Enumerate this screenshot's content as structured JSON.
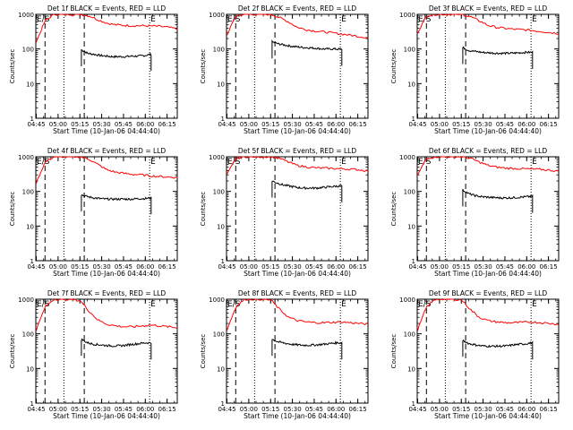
{
  "chart_data": [
    {
      "type": "line",
      "title": "Det 1f BLACK = Events, RED = LLD",
      "xlabel": "Start Time (10-Jan-06 04:44:40)",
      "ylabel": "Counts/sec",
      "yscale": "log",
      "ylim": [
        1,
        1000
      ],
      "xticks": [
        "04:45",
        "05:00",
        "05:15",
        "05:30",
        "05:45",
        "06:00",
        "06:15"
      ],
      "yticks": [
        "1",
        "10",
        "100",
        "1000"
      ],
      "markers": {
        "es_label": "E/S",
        "e_label": "E"
      },
      "series": [
        {
          "name": "Events",
          "color": "#000000",
          "start": "05:16",
          "end": "06:04",
          "values": [
            95,
            75,
            70,
            65,
            62,
            60,
            60,
            60,
            62,
            62,
            65,
            70
          ]
        },
        {
          "name": "LLD",
          "color": "#ff0000",
          "start": "04:45",
          "end": "06:22",
          "values": [
            160,
            650,
            1000,
            1000,
            1000,
            1000,
            900,
            700,
            560,
            500,
            480,
            470,
            470,
            460,
            450,
            420,
            380
          ]
        }
      ]
    },
    {
      "type": "line",
      "title": "Det 2f BLACK = Events, RED = LLD",
      "xlabel": "Start Time (10-Jan-06 04:44:40)",
      "ylabel": "Counts/sec",
      "yscale": "log",
      "ylim": [
        1,
        1000
      ],
      "xticks": [
        "04:45",
        "05:00",
        "05:15",
        "05:30",
        "05:45",
        "06:00",
        "06:15"
      ],
      "yticks": [
        "1",
        "10",
        "100",
        "1000"
      ],
      "markers": {
        "es_label": "E/S",
        "e_label": "E"
      },
      "series": [
        {
          "name": "Events",
          "color": "#000000",
          "start": "05:16",
          "end": "06:04",
          "values": [
            160,
            140,
            130,
            120,
            115,
            110,
            108,
            105,
            100,
            100,
            100,
            98
          ]
        },
        {
          "name": "LLD",
          "color": "#ff0000",
          "start": "04:45",
          "end": "06:22",
          "values": [
            250,
            900,
            1000,
            1000,
            1000,
            1000,
            800,
            600,
            420,
            360,
            330,
            310,
            290,
            270,
            250,
            230,
            210
          ]
        }
      ]
    },
    {
      "type": "line",
      "title": "Det 3f BLACK = Events, RED = LLD",
      "xlabel": "Start Time (10-Jan-06 04:44:40)",
      "ylabel": "Counts/sec",
      "yscale": "log",
      "ylim": [
        1,
        1000
      ],
      "xticks": [
        "04:45",
        "05:00",
        "05:15",
        "05:30",
        "05:45",
        "06:00",
        "06:15"
      ],
      "yticks": [
        "1",
        "10",
        "100",
        "1000"
      ],
      "markers": {
        "es_label": "E/S",
        "e_label": "E"
      },
      "series": [
        {
          "name": "Events",
          "color": "#000000",
          "start": "05:16",
          "end": "06:04",
          "values": [
            110,
            90,
            85,
            80,
            78,
            76,
            75,
            75,
            76,
            78,
            80,
            80
          ]
        },
        {
          "name": "LLD",
          "color": "#ff0000",
          "start": "04:45",
          "end": "06:22",
          "values": [
            300,
            900,
            1000,
            1000,
            1000,
            1000,
            850,
            650,
            480,
            420,
            390,
            370,
            360,
            340,
            320,
            300,
            280
          ]
        }
      ]
    },
    {
      "type": "line",
      "title": "Det 4f BLACK = Events, RED = LLD",
      "xlabel": "Start Time (10-Jan-06 04:44:40)",
      "ylabel": "Counts/sec",
      "yscale": "log",
      "ylim": [
        1,
        1000
      ],
      "xticks": [
        "04:45",
        "05:00",
        "05:15",
        "05:30",
        "05:45",
        "06:00",
        "06:15"
      ],
      "yticks": [
        "1",
        "10",
        "100",
        "1000"
      ],
      "markers": {
        "es_label": "E/S",
        "e_label": "E"
      },
      "series": [
        {
          "name": "Events",
          "color": "#000000",
          "start": "05:16",
          "end": "06:04",
          "values": [
            80,
            70,
            65,
            62,
            60,
            60,
            60,
            60,
            60,
            62,
            62,
            65
          ]
        },
        {
          "name": "LLD",
          "color": "#ff0000",
          "start": "04:45",
          "end": "06:22",
          "values": [
            180,
            700,
            1000,
            1000,
            1000,
            1000,
            850,
            600,
            420,
            360,
            330,
            310,
            300,
            280,
            270,
            260,
            250
          ]
        }
      ]
    },
    {
      "type": "line",
      "title": "Det 5f BLACK = Events, RED = LLD",
      "xlabel": "Start Time (10-Jan-06 04:44:40)",
      "ylabel": "Counts/sec",
      "yscale": "log",
      "ylim": [
        1,
        1000
      ],
      "xticks": [
        "04:45",
        "05:00",
        "05:15",
        "05:30",
        "05:45",
        "06:00",
        "06:15"
      ],
      "yticks": [
        "1",
        "10",
        "100",
        "1000"
      ],
      "markers": {
        "es_label": "E/S",
        "e_label": "E"
      },
      "series": [
        {
          "name": "Events",
          "color": "#000000",
          "start": "05:16",
          "end": "06:04",
          "values": [
            200,
            170,
            150,
            140,
            130,
            125,
            125,
            125,
            130,
            135,
            140,
            145
          ]
        },
        {
          "name": "LLD",
          "color": "#ff0000",
          "start": "04:45",
          "end": "06:22",
          "values": [
            300,
            900,
            1000,
            1000,
            1000,
            1000,
            900,
            700,
            560,
            510,
            480,
            470,
            460,
            450,
            440,
            420,
            390
          ]
        }
      ]
    },
    {
      "type": "line",
      "title": "Det 6f BLACK = Events, RED = LLD",
      "xlabel": "Start Time (10-Jan-06 04:44:40)",
      "ylabel": "Counts/sec",
      "yscale": "log",
      "ylim": [
        1,
        1000
      ],
      "xticks": [
        "04:45",
        "05:00",
        "05:15",
        "05:30",
        "05:45",
        "06:00",
        "06:15"
      ],
      "yticks": [
        "1",
        "10",
        "100",
        "1000"
      ],
      "markers": {
        "es_label": "E/S",
        "e_label": "E"
      },
      "series": [
        {
          "name": "Events",
          "color": "#000000",
          "start": "05:16",
          "end": "06:04",
          "values": [
            110,
            85,
            75,
            70,
            68,
            66,
            65,
            65,
            66,
            68,
            70,
            72
          ]
        },
        {
          "name": "LLD",
          "color": "#ff0000",
          "start": "04:45",
          "end": "06:22",
          "values": [
            300,
            900,
            1000,
            1000,
            1000,
            1000,
            900,
            700,
            560,
            500,
            470,
            460,
            450,
            440,
            430,
            410,
            380
          ]
        }
      ]
    },
    {
      "type": "line",
      "title": "Det 7f BLACK = Events, RED = LLD",
      "xlabel": "Start Time (10-Jan-06 04:44:40)",
      "ylabel": "Counts/sec",
      "yscale": "log",
      "ylim": [
        1,
        1000
      ],
      "xticks": [
        "04:45",
        "05:00",
        "05:15",
        "05:30",
        "05:45",
        "06:00",
        "06:15"
      ],
      "yticks": [
        "1",
        "10",
        "100",
        "1000"
      ],
      "markers": {
        "es_label": "E/S",
        "e_label": "E"
      },
      "series": [
        {
          "name": "Events",
          "color": "#000000",
          "start": "05:16",
          "end": "06:04",
          "values": [
            70,
            55,
            50,
            48,
            46,
            45,
            45,
            47,
            50,
            52,
            55,
            55
          ]
        },
        {
          "name": "LLD",
          "color": "#ff0000",
          "start": "04:45",
          "end": "06:22",
          "values": [
            130,
            600,
            1000,
            1000,
            1000,
            900,
            450,
            250,
            190,
            170,
            160,
            160,
            170,
            180,
            170,
            160,
            150
          ]
        }
      ]
    },
    {
      "type": "line",
      "title": "Det 8f BLACK = Events, RED = LLD",
      "xlabel": "Start Time (10-Jan-06 04:44:40)",
      "ylabel": "Counts/sec",
      "yscale": "log",
      "ylim": [
        1,
        1000
      ],
      "xticks": [
        "04:45",
        "05:00",
        "05:15",
        "05:30",
        "05:45",
        "06:00",
        "06:15"
      ],
      "yticks": [
        "1",
        "10",
        "100",
        "1000"
      ],
      "markers": {
        "es_label": "E/S",
        "e_label": "E"
      },
      "series": [
        {
          "name": "Events",
          "color": "#000000",
          "start": "05:16",
          "end": "06:04",
          "values": [
            70,
            58,
            54,
            50,
            48,
            47,
            47,
            48,
            50,
            52,
            55,
            55
          ]
        },
        {
          "name": "LLD",
          "color": "#ff0000",
          "start": "04:45",
          "end": "06:22",
          "values": [
            130,
            600,
            1000,
            1000,
            1000,
            950,
            500,
            300,
            240,
            220,
            210,
            210,
            215,
            220,
            210,
            200,
            190
          ]
        }
      ]
    },
    {
      "type": "line",
      "title": "Det 9f BLACK = Events, RED = LLD",
      "xlabel": "Start Time (10-Jan-06 04:44:40)",
      "ylabel": "Counts/sec",
      "yscale": "log",
      "ylim": [
        1,
        1000
      ],
      "xticks": [
        "04:45",
        "05:00",
        "05:15",
        "05:30",
        "05:45",
        "06:00",
        "06:15"
      ],
      "yticks": [
        "1",
        "10",
        "100",
        "1000"
      ],
      "markers": {
        "es_label": "E/S",
        "e_label": "E"
      },
      "series": [
        {
          "name": "Events",
          "color": "#000000",
          "start": "05:16",
          "end": "06:04",
          "values": [
            65,
            52,
            48,
            45,
            44,
            44,
            44,
            45,
            48,
            50,
            52,
            55
          ]
        },
        {
          "name": "LLD",
          "color": "#ff0000",
          "start": "04:45",
          "end": "06:22",
          "values": [
            130,
            600,
            1000,
            1000,
            1000,
            950,
            500,
            300,
            240,
            220,
            210,
            210,
            215,
            220,
            210,
            200,
            190
          ]
        }
      ]
    }
  ]
}
